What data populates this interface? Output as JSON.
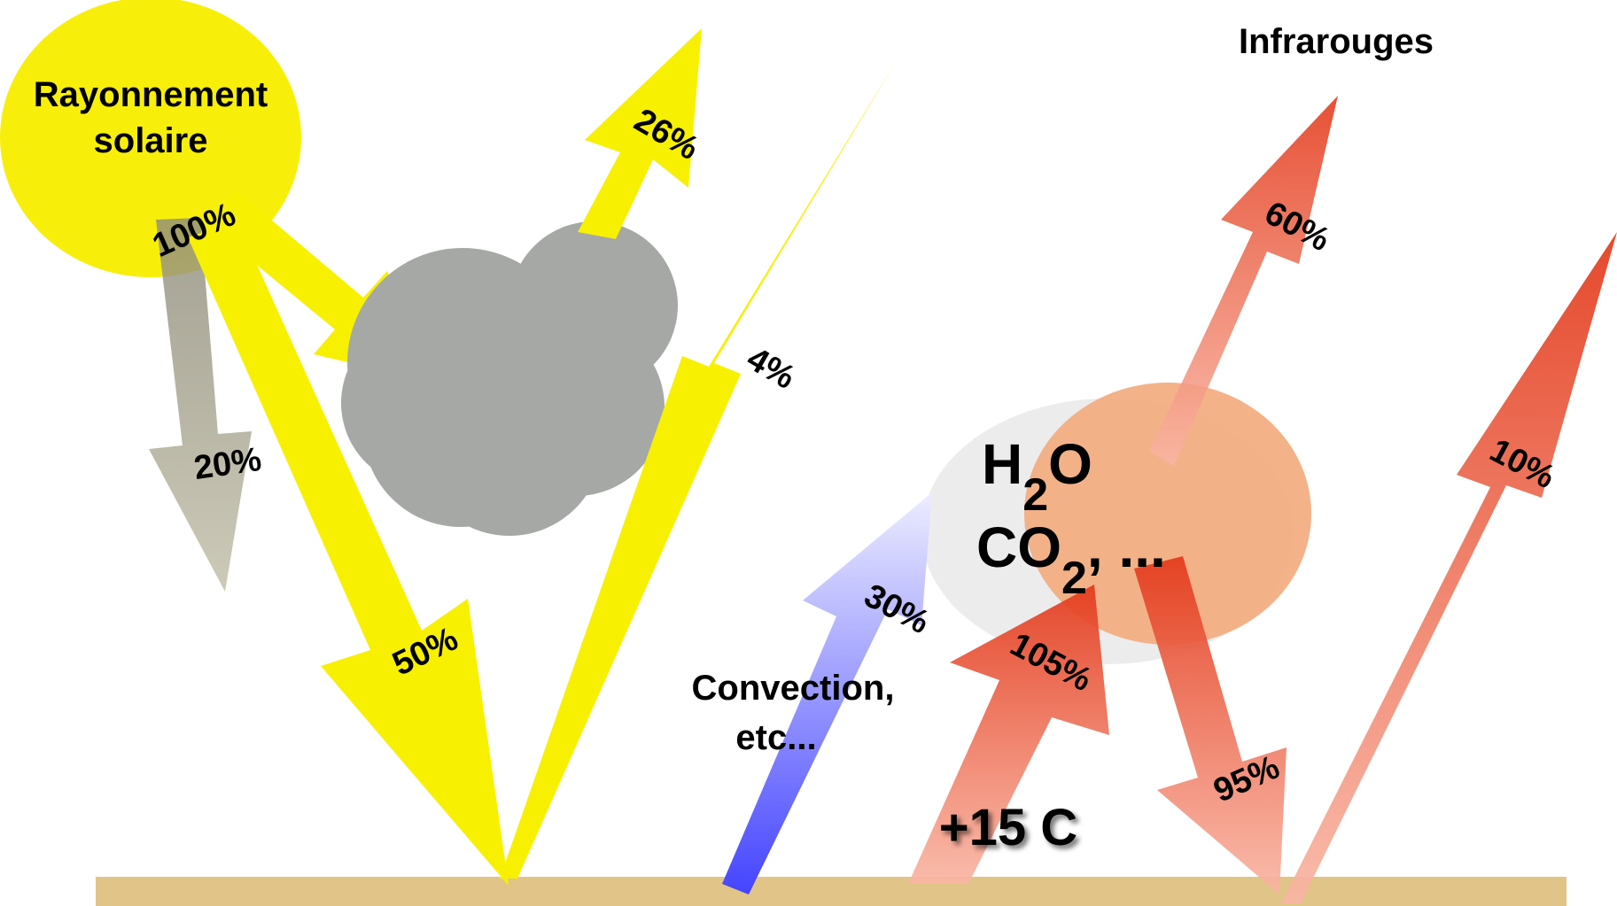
{
  "title": "",
  "sun": {
    "label_line1": "Rayonnement",
    "label_line2": "solaire",
    "incoming_pct": "100%",
    "color": "#f7ef0a"
  },
  "infrared_label": "Infrarouges",
  "flows": {
    "absorbed_atmosphere": "20%",
    "reflected_clouds": "26%",
    "reflected_surface": "4%",
    "absorbed_surface": "50%",
    "convection": "30%",
    "surface_emission": "105%",
    "back_radiation": "95%",
    "ir_to_space": "60%",
    "ir_window": "10%"
  },
  "gases": {
    "h2o_main": "H",
    "h2o_sub": "2",
    "h2o_end": "O",
    "co2_main": "CO",
    "co2_sub": "2",
    "co2_end": ", ..."
  },
  "convection_label_line1": "Convection,",
  "convection_label_line2": "etc...",
  "surface_temp": "+15 C",
  "colors": {
    "solar": "#f7f000",
    "cloud": "#a5a8a5",
    "ground": "#e1c488",
    "greenhouse": "#f3ab7f",
    "ir_dark": "#e03a1c",
    "ir_light": "#f9b3a0",
    "convection_dark": "#5050ff",
    "convection_light": "#e8e8ff",
    "absorbed_gray": "#b8b49a"
  }
}
